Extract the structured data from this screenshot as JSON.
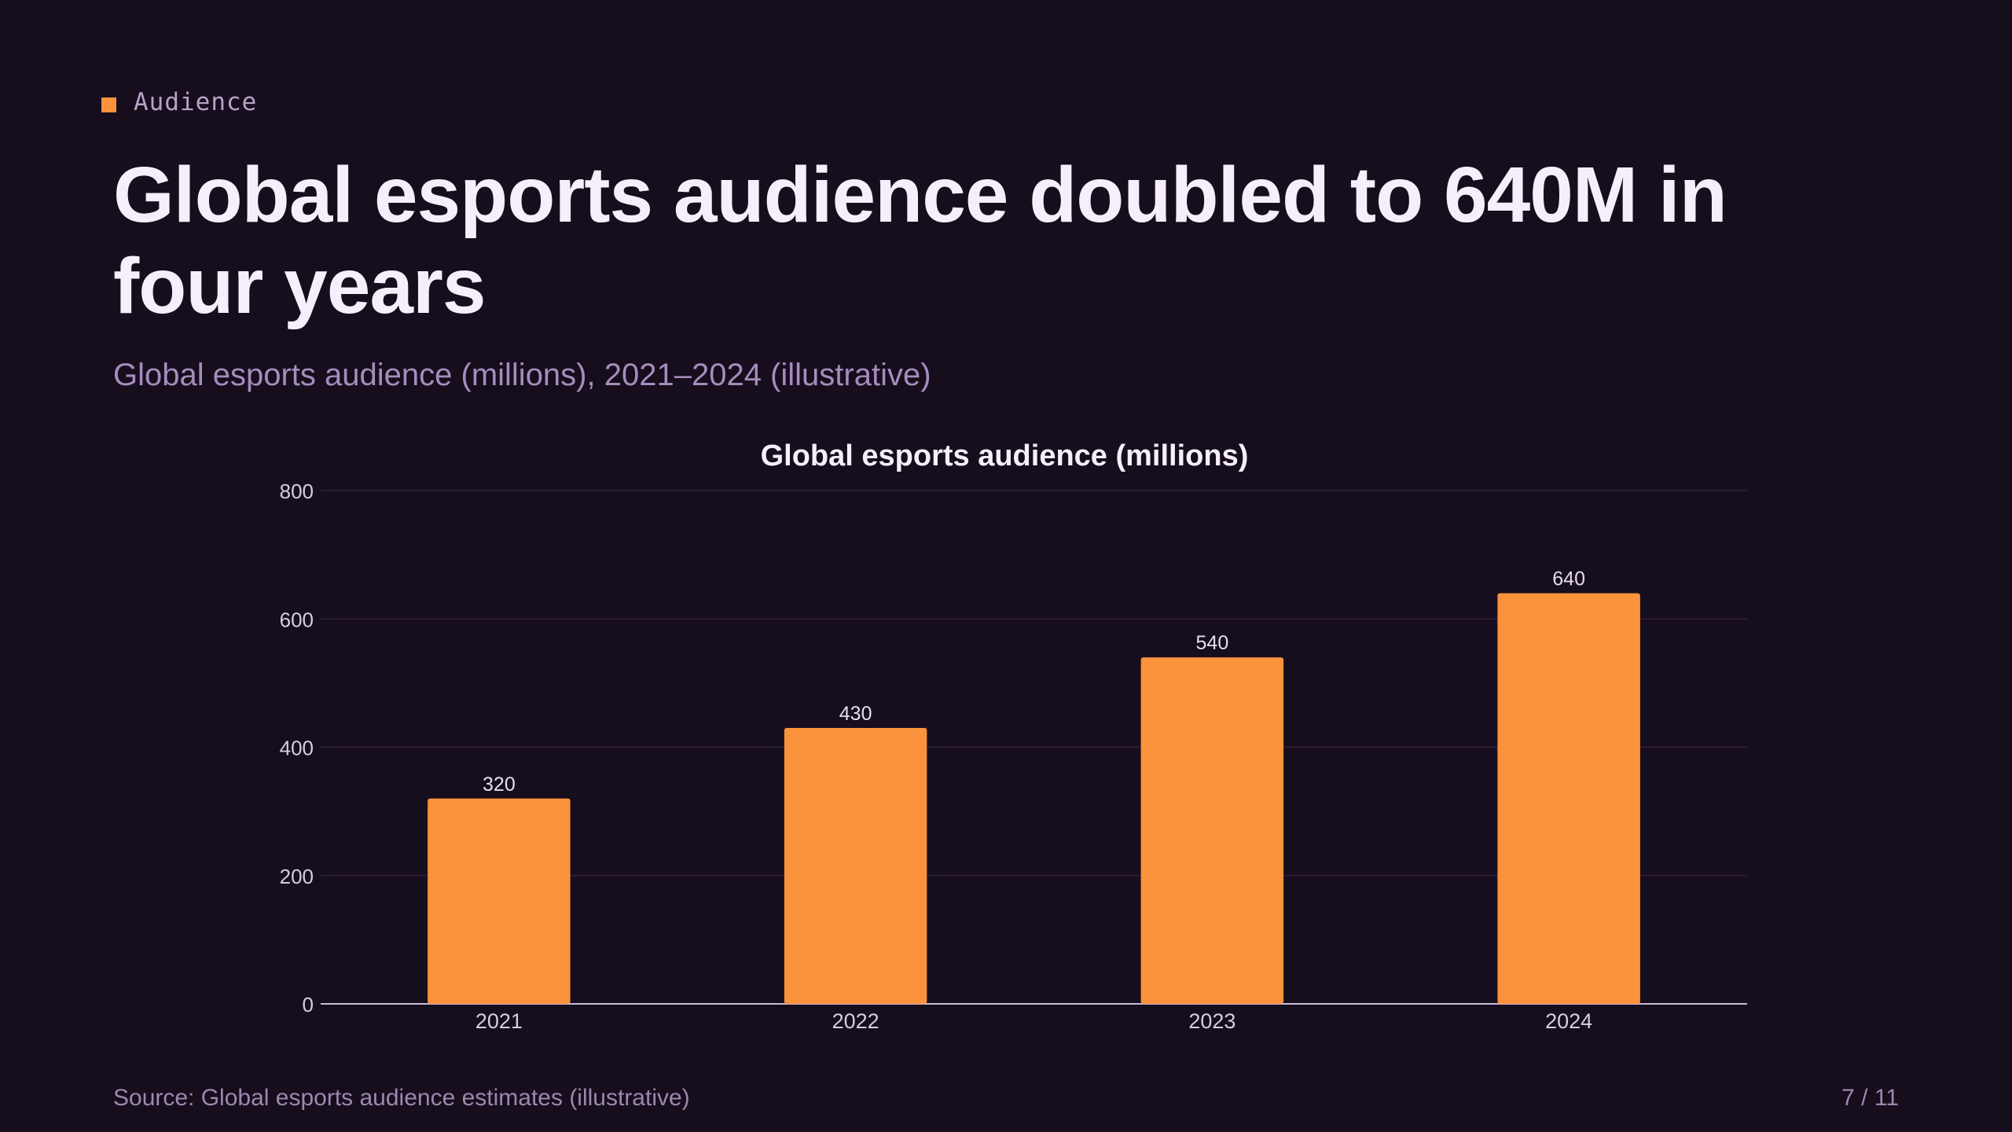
{
  "slide": {
    "eyebrow": "Audience",
    "headline": "Global esports audience doubled to 640M in four years",
    "subtitle": "Global esports audience (millions), 2021–2024 (illustrative)",
    "source": "Source: Global esports audience estimates (illustrative)",
    "page": "7 / 11"
  },
  "colors": {
    "background": "#160d1d",
    "accent": "#fb923c",
    "bar": "#fb923c"
  },
  "chart_data": {
    "type": "bar",
    "title": "Global esports audience (millions)",
    "categories": [
      "2021",
      "2022",
      "2023",
      "2024"
    ],
    "values": [
      320,
      430,
      540,
      640
    ],
    "value_labels": [
      "320",
      "430",
      "540",
      "640"
    ],
    "yticks": [
      0,
      200,
      400,
      600,
      800
    ],
    "ylim": [
      0,
      800
    ],
    "xlabel": "",
    "ylabel": "",
    "grid": true
  }
}
